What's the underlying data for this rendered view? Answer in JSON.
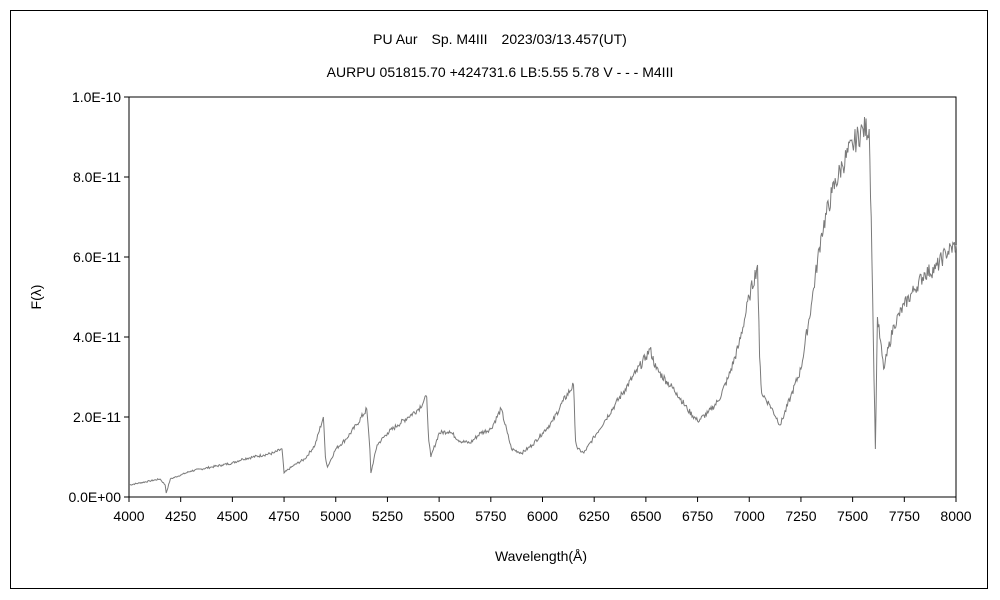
{
  "chart_data": {
    "type": "line",
    "title": "PU Aur　Sp. M4III　2023/03/13.457(UT)",
    "subtitle": "AURPU 051815.70 +424731.6 LB:5.55 5.78 V - - - M4III",
    "xlabel": "Wavelength(Å)",
    "ylabel": "F(λ)",
    "xlim": [
      4000,
      8000
    ],
    "ylim": [
      0,
      1e-10
    ],
    "x_ticks": [
      4000,
      4250,
      4500,
      4750,
      5000,
      5250,
      5500,
      5750,
      6000,
      6250,
      6500,
      6750,
      7000,
      7250,
      7500,
      7750,
      8000
    ],
    "x_tick_labels": [
      "4000",
      "4250",
      "4500",
      "4750",
      "5000",
      "5250",
      "5500",
      "5750",
      "6000",
      "6250",
      "6500",
      "6750",
      "7000",
      "7250",
      "7500",
      "7750",
      "8000"
    ],
    "y_ticks": [
      0,
      2e-11,
      4e-11,
      6e-11,
      8e-11,
      1e-10
    ],
    "y_tick_labels": [
      "0.0E+00",
      "2.0E-11",
      "4.0E-11",
      "6.0E-11",
      "8.0E-11",
      "1.0E-10"
    ],
    "grid": false,
    "legend": "none",
    "line_color": "#7a7a7a",
    "series": [
      {
        "x": [
          4000,
          4050,
          4100,
          4150,
          4175,
          4180,
          4200,
          4250,
          4300,
          4350,
          4400,
          4450,
          4500,
          4550,
          4600,
          4650,
          4700,
          4740,
          4750,
          4760,
          4800,
          4850,
          4900,
          4940,
          4950,
          4960,
          5000,
          5050,
          5100,
          5150,
          5165,
          5170,
          5200,
          5250,
          5300,
          5350,
          5400,
          5440,
          5450,
          5460,
          5500,
          5550,
          5600,
          5650,
          5700,
          5750,
          5800,
          5830,
          5850,
          5900,
          5950,
          6000,
          6050,
          6100,
          6150,
          6160,
          6170,
          6200,
          6250,
          6300,
          6350,
          6400,
          6450,
          6500,
          6520,
          6550,
          6600,
          6650,
          6700,
          6750,
          6800,
          6850,
          6900,
          6950,
          7000,
          7040,
          7050,
          7060,
          7100,
          7150,
          7200,
          7250,
          7300,
          7350,
          7400,
          7450,
          7500,
          7550,
          7580,
          7590,
          7600,
          7610,
          7620,
          7650,
          7700,
          7750,
          7800,
          7850,
          7900,
          7950,
          8000
        ],
        "values": [
          3e-12,
          3.5e-12,
          4e-12,
          4.5e-12,
          3e-12,
          1e-12,
          4.5e-12,
          5.5e-12,
          6.5e-12,
          7e-12,
          7.5e-12,
          8e-12,
          8.5e-12,
          9.5e-12,
          1e-11,
          1.05e-11,
          1.1e-11,
          1.2e-11,
          6e-12,
          6.5e-12,
          8e-12,
          9.5e-12,
          1.3e-11,
          2e-11,
          1e-11,
          7.5e-12,
          1.2e-11,
          1.45e-11,
          1.8e-11,
          2.2e-11,
          1.2e-11,
          6e-12,
          1.3e-11,
          1.6e-11,
          1.8e-11,
          2e-11,
          2.2e-11,
          2.5e-11,
          1.4e-11,
          1e-11,
          1.6e-11,
          1.65e-11,
          1.4e-11,
          1.35e-11,
          1.6e-11,
          1.7e-11,
          2.2e-11,
          1.6e-11,
          1.2e-11,
          1.1e-11,
          1.3e-11,
          1.6e-11,
          1.9e-11,
          2.4e-11,
          2.8e-11,
          1.4e-11,
          1.2e-11,
          1.1e-11,
          1.5e-11,
          1.9e-11,
          2.3e-11,
          2.7e-11,
          3.1e-11,
          3.5e-11,
          3.7e-11,
          3.2e-11,
          2.9e-11,
          2.6e-11,
          2.2e-11,
          1.9e-11,
          2.1e-11,
          2.4e-11,
          3e-11,
          3.8e-11,
          5e-11,
          5.8e-11,
          3.5e-11,
          2.6e-11,
          2.3e-11,
          1.8e-11,
          2.5e-11,
          3.2e-11,
          4.8e-11,
          6.6e-11,
          7.6e-11,
          8.3e-11,
          8.8e-11,
          9.2e-11,
          9.2e-11,
          7e-11,
          4e-11,
          1.2e-11,
          4.5e-11,
          3.2e-11,
          4.3e-11,
          4.8e-11,
          5.2e-11,
          5.6e-11,
          5.7e-11,
          6.1e-11,
          6.3e-11
        ]
      }
    ]
  }
}
